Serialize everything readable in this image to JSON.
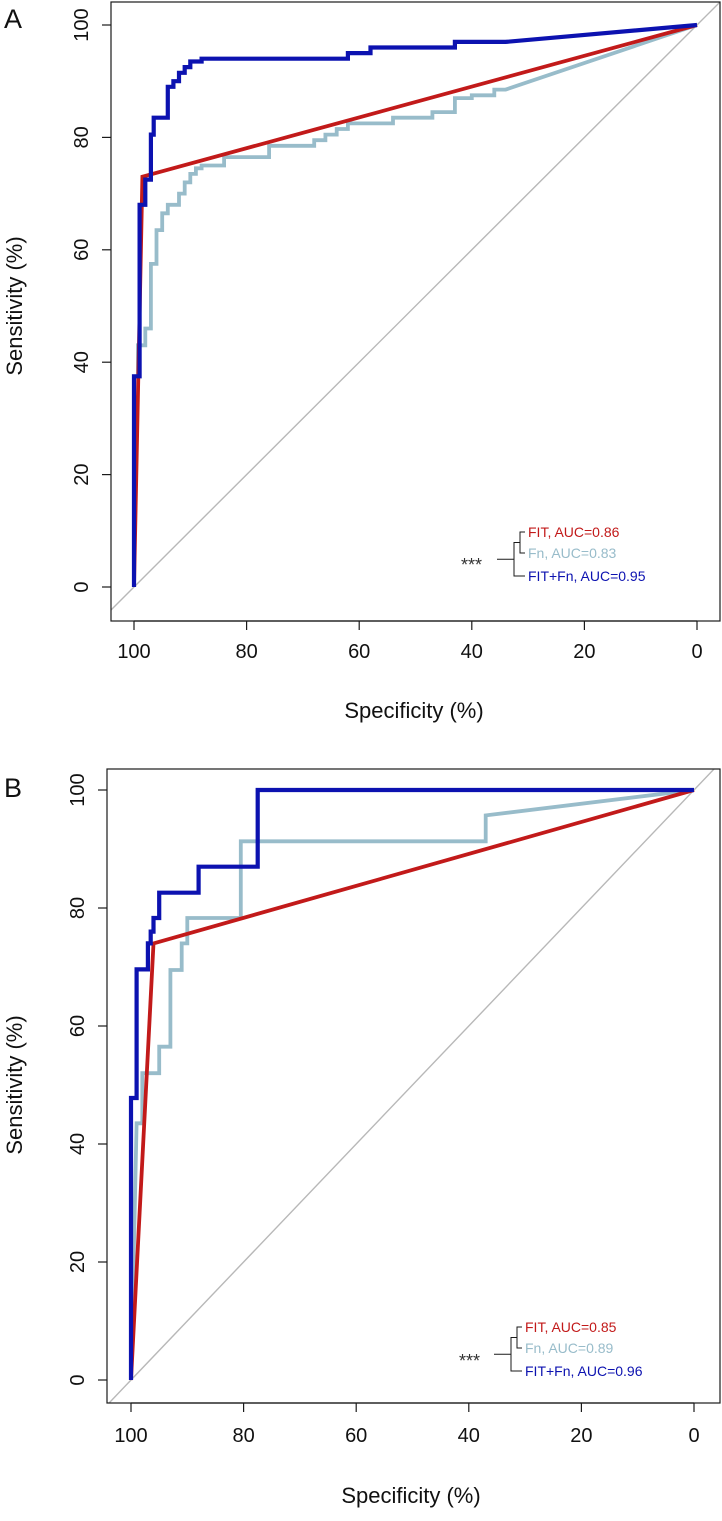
{
  "colors": {
    "fit": "#c21a1a",
    "fn": "#98bcca",
    "fitfn": "#0c12b0",
    "diagonal": "#b8b8b8",
    "axis": "#1a1a1a",
    "text": "#111111"
  },
  "chart_data": [
    {
      "panel_label": "A",
      "type": "line",
      "xlabel": "Specificity (%)",
      "ylabel": "Sensitivity (%)",
      "xlim": [
        100,
        0
      ],
      "ylim": [
        0,
        100
      ],
      "x_ticks": [
        "100",
        "80",
        "60",
        "40",
        "20",
        "0"
      ],
      "y_ticks": [
        "0",
        "20",
        "40",
        "60",
        "80",
        "100"
      ],
      "reference_line": [
        [
          100,
          0
        ],
        [
          0,
          100
        ]
      ],
      "significance": "***",
      "series": [
        {
          "name": "Fn",
          "legend": "Fn, AUC=0.83",
          "color_key": "fn",
          "points": [
            [
              100,
              0
            ],
            [
              100,
              37.5
            ],
            [
              99.3,
              37.5
            ],
            [
              99.3,
              43
            ],
            [
              98,
              43
            ],
            [
              98,
              46
            ],
            [
              97,
              46
            ],
            [
              97,
              57.5
            ],
            [
              96,
              57.5
            ],
            [
              96,
              63.5
            ],
            [
              95,
              63.5
            ],
            [
              95,
              66.5
            ],
            [
              94,
              66.5
            ],
            [
              94,
              68
            ],
            [
              92,
              68
            ],
            [
              92,
              70
            ],
            [
              91,
              70
            ],
            [
              91,
              72
            ],
            [
              90,
              72
            ],
            [
              90,
              73.5
            ],
            [
              89,
              73.5
            ],
            [
              89,
              74.5
            ],
            [
              88,
              74.5
            ],
            [
              88,
              75
            ],
            [
              84,
              75
            ],
            [
              84,
              76.5
            ],
            [
              76,
              76.5
            ],
            [
              76,
              78.5
            ],
            [
              68,
              78.5
            ],
            [
              68,
              79.5
            ],
            [
              66,
              79.5
            ],
            [
              66,
              80.5
            ],
            [
              64,
              80.5
            ],
            [
              64,
              81.5
            ],
            [
              62,
              81.5
            ],
            [
              62,
              82.5
            ],
            [
              54,
              82.5
            ],
            [
              54,
              83.5
            ],
            [
              47,
              83.5
            ],
            [
              47,
              84.5
            ],
            [
              43,
              84.5
            ],
            [
              43,
              87
            ],
            [
              40,
              87
            ],
            [
              40,
              87.5
            ],
            [
              36,
              87.5
            ],
            [
              36,
              88.5
            ],
            [
              34,
              88.5
            ],
            [
              0,
              100
            ]
          ]
        },
        {
          "name": "FIT",
          "legend": "FIT, AUC=0.86",
          "color_key": "fit",
          "points": [
            [
              100,
              0
            ],
            [
              98.5,
              73
            ],
            [
              0,
              100
            ]
          ]
        },
        {
          "name": "FIT+Fn",
          "legend": "FIT+Fn, AUC=0.95",
          "color_key": "fitfn",
          "points": [
            [
              100,
              0
            ],
            [
              100,
              37.5
            ],
            [
              99,
              37.5
            ],
            [
              99,
              68
            ],
            [
              98,
              68
            ],
            [
              98,
              72.5
            ],
            [
              97,
              72.5
            ],
            [
              97,
              80.5
            ],
            [
              96.5,
              80.5
            ],
            [
              96.5,
              83.5
            ],
            [
              94,
              83.5
            ],
            [
              94,
              89
            ],
            [
              93,
              89
            ],
            [
              93,
              90
            ],
            [
              92,
              90
            ],
            [
              92,
              91.5
            ],
            [
              91,
              91.5
            ],
            [
              91,
              92.5
            ],
            [
              90,
              92.5
            ],
            [
              90,
              93.5
            ],
            [
              88,
              93.5
            ],
            [
              88,
              94
            ],
            [
              62,
              94
            ],
            [
              62,
              95
            ],
            [
              58,
              95
            ],
            [
              58,
              96
            ],
            [
              43,
              96
            ],
            [
              43,
              97
            ],
            [
              34,
              97
            ],
            [
              0,
              100
            ]
          ]
        }
      ]
    },
    {
      "panel_label": "B",
      "type": "line",
      "xlabel": "Specificity (%)",
      "ylabel": "Sensitivity (%)",
      "xlim": [
        100,
        0
      ],
      "ylim": [
        0,
        100
      ],
      "x_ticks": [
        "100",
        "80",
        "60",
        "40",
        "20",
        "0"
      ],
      "y_ticks": [
        "0",
        "20",
        "40",
        "60",
        "80",
        "100"
      ],
      "reference_line": [
        [
          100,
          0
        ],
        [
          0,
          100
        ]
      ],
      "significance": "***",
      "series": [
        {
          "name": "Fn",
          "legend": "Fn, AUC=0.89",
          "color_key": "fn",
          "points": [
            [
              100,
              0
            ],
            [
              99,
              43.5
            ],
            [
              98,
              43.5
            ],
            [
              98,
              52
            ],
            [
              95,
              52
            ],
            [
              95,
              56.5
            ],
            [
              93,
              56.5
            ],
            [
              93,
              69.5
            ],
            [
              91,
              69.5
            ],
            [
              91,
              74
            ],
            [
              90,
              74
            ],
            [
              90,
              78.3
            ],
            [
              80.5,
              78.3
            ],
            [
              80.5,
              91.3
            ],
            [
              37,
              91.3
            ],
            [
              37,
              95.7
            ],
            [
              0,
              100
            ]
          ]
        },
        {
          "name": "FIT",
          "legend": "FIT, AUC=0.85",
          "color_key": "fit",
          "points": [
            [
              100,
              0
            ],
            [
              96,
              74
            ],
            [
              0,
              100
            ]
          ]
        },
        {
          "name": "FIT+Fn",
          "legend": "FIT+Fn, AUC=0.96",
          "color_key": "fitfn",
          "points": [
            [
              100,
              0
            ],
            [
              100,
              47.8
            ],
            [
              99,
              47.8
            ],
            [
              99,
              69.6
            ],
            [
              97,
              69.6
            ],
            [
              97,
              74
            ],
            [
              96.5,
              74
            ],
            [
              96.5,
              76
            ],
            [
              96,
              76
            ],
            [
              96,
              78.3
            ],
            [
              95,
              78.3
            ],
            [
              95,
              82.6
            ],
            [
              88,
              82.6
            ],
            [
              88,
              87
            ],
            [
              77.5,
              87
            ],
            [
              77.5,
              100
            ],
            [
              0,
              100
            ]
          ]
        }
      ]
    }
  ]
}
